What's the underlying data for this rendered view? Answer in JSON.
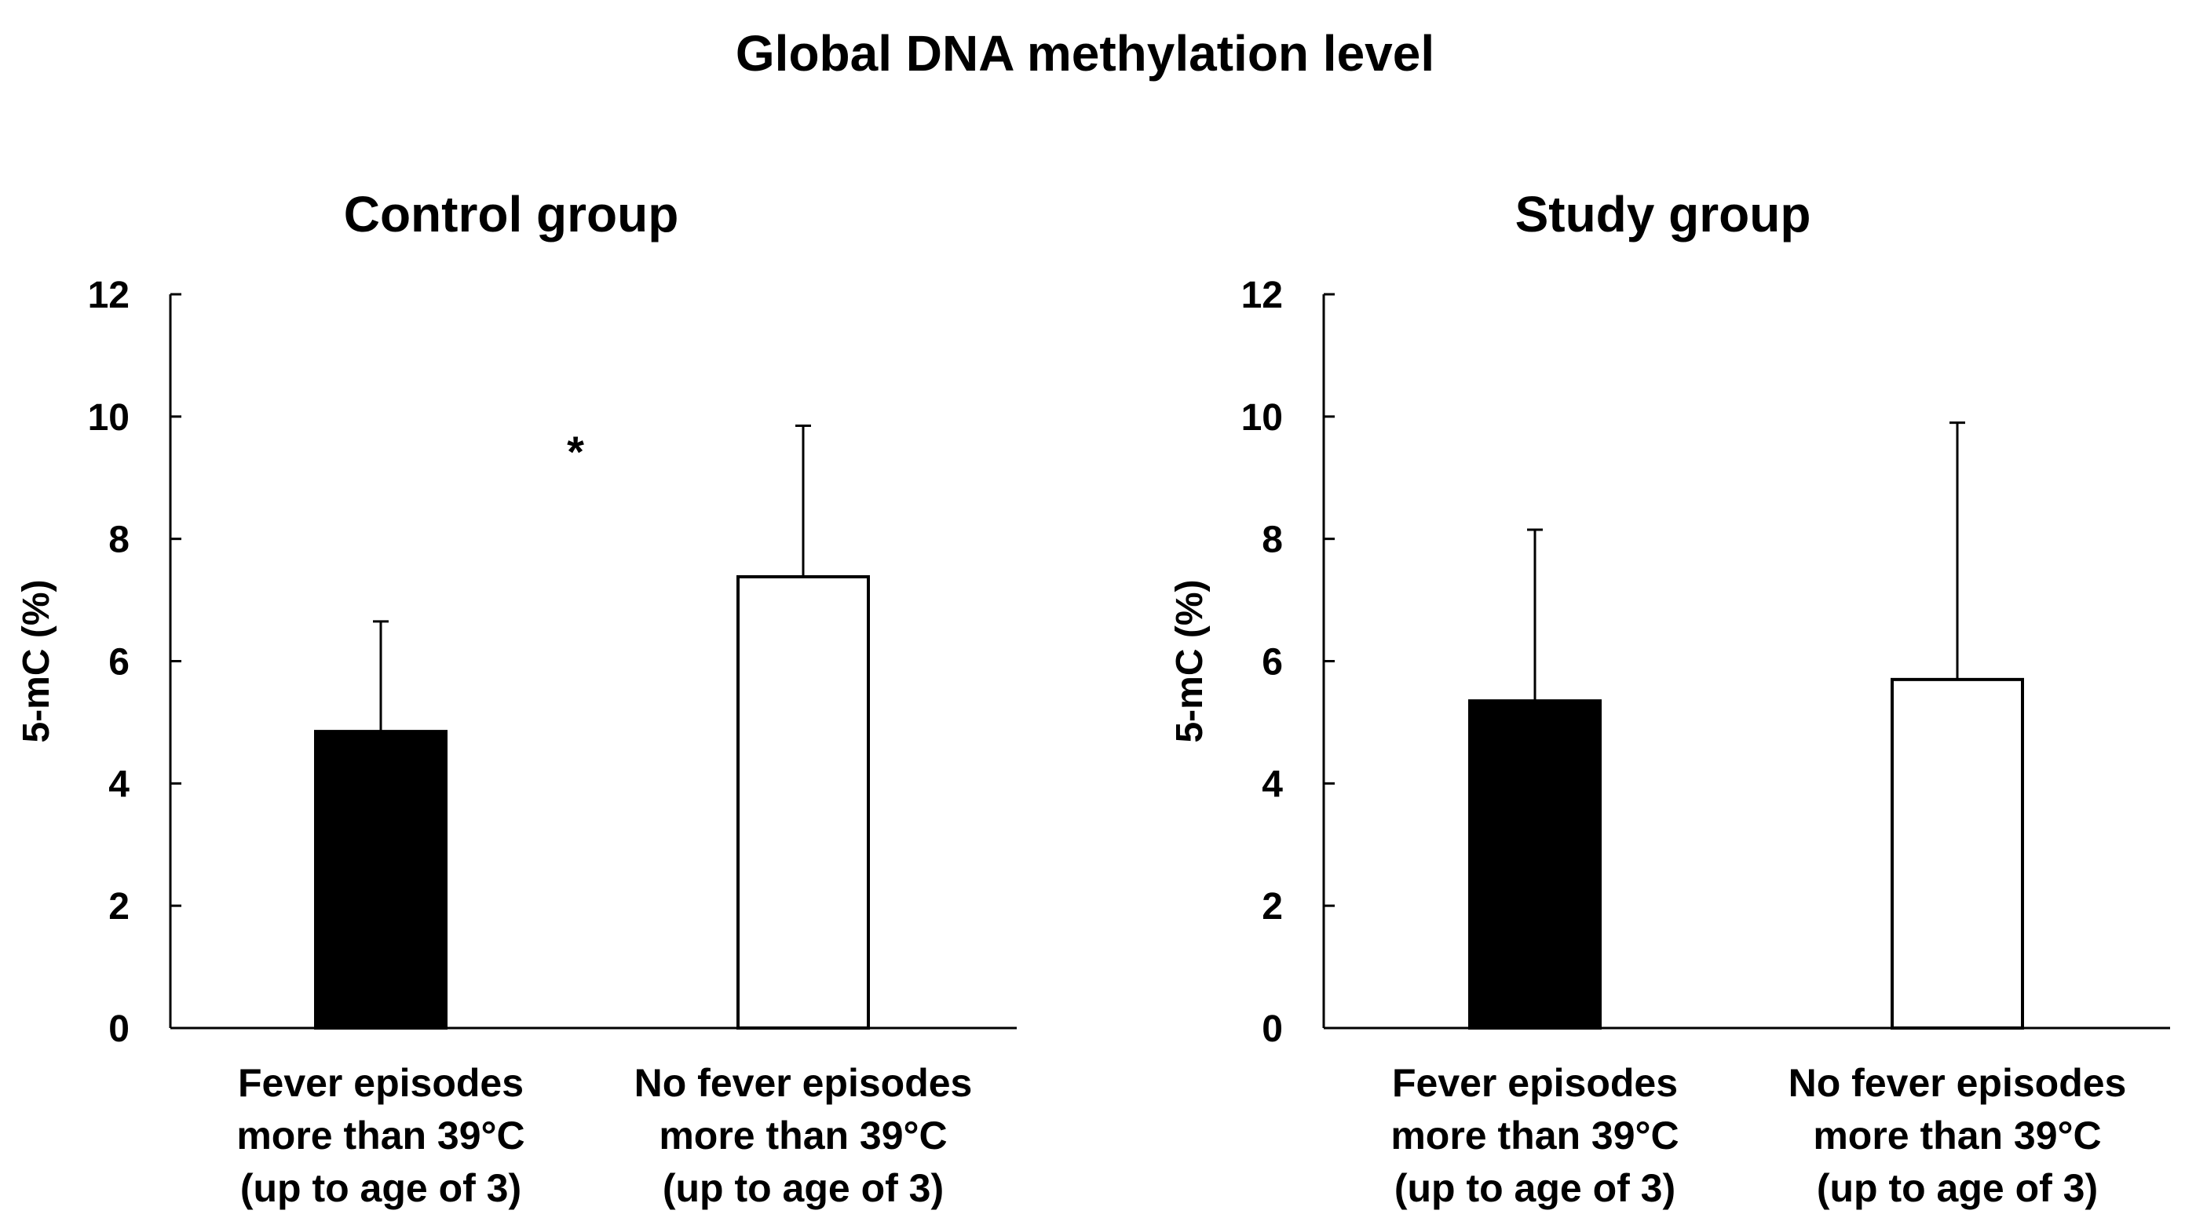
{
  "figure_title": "Global DNA methylation level",
  "chart_data": [
    {
      "type": "bar",
      "title": "Control group",
      "ylabel": "5-mC (%)",
      "xlabel": "",
      "ylim": [
        0,
        12
      ],
      "yticks": [
        "0",
        "2",
        "4",
        "6",
        "8",
        "10",
        "12"
      ],
      "categories": [
        [
          "Fever episodes",
          "more than 39°C",
          "(up to age of 3)"
        ],
        [
          "No fever episodes",
          "more than 39°C",
          "(up to age of 3)"
        ]
      ],
      "values": [
        4.85,
        7.38
      ],
      "error_upper": [
        6.65,
        9.85
      ],
      "bar_colors": [
        "#000000",
        "#ffffff"
      ],
      "annotation": "*"
    },
    {
      "type": "bar",
      "title": "Study group",
      "ylabel": "5-mC (%)",
      "xlabel": "",
      "ylim": [
        0,
        12
      ],
      "yticks": [
        "0",
        "2",
        "4",
        "6",
        "8",
        "10",
        "12"
      ],
      "categories": [
        [
          "Fever episodes",
          "more than 39°C",
          "(up to age of 3)"
        ],
        [
          "No fever episodes",
          "more than 39°C",
          "(up to age of 3)"
        ]
      ],
      "values": [
        5.35,
        5.7
      ],
      "error_upper": [
        8.15,
        9.9
      ],
      "bar_colors": [
        "#000000",
        "#ffffff"
      ],
      "annotation": ""
    }
  ]
}
